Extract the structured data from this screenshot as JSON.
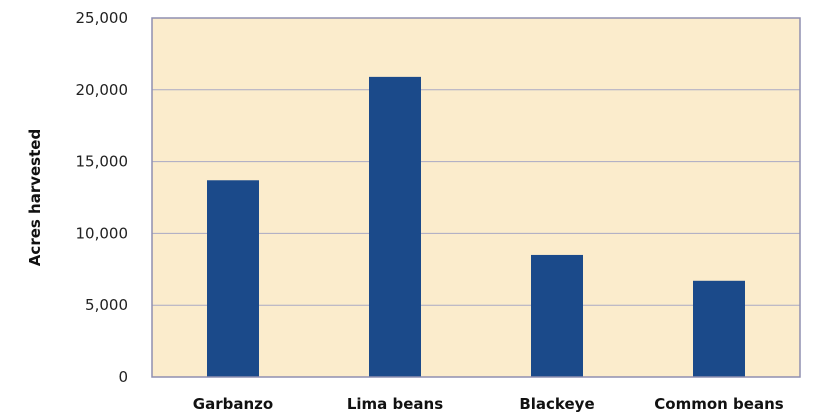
{
  "chart_data": {
    "type": "bar",
    "title": "",
    "xlabel": "",
    "ylabel": "Acres harvested",
    "categories": [
      "Garbanzo",
      "Lima beans",
      "Blackeye",
      "Common beans"
    ],
    "values": [
      13700,
      20900,
      8500,
      6700
    ],
    "ylim": [
      0,
      25000
    ],
    "yticks": [
      0,
      5000,
      10000,
      15000,
      20000,
      25000
    ],
    "ytick_labels": [
      "0",
      "5,000",
      "10,000",
      "15,000",
      "20,000",
      "25,000"
    ],
    "grid": true,
    "legend": "none",
    "colors": {
      "bar": "#1b4a8a",
      "plot_background": "#fbeccc",
      "plot_border": "#8f8fb0",
      "grid": "#a9a9c4"
    }
  }
}
